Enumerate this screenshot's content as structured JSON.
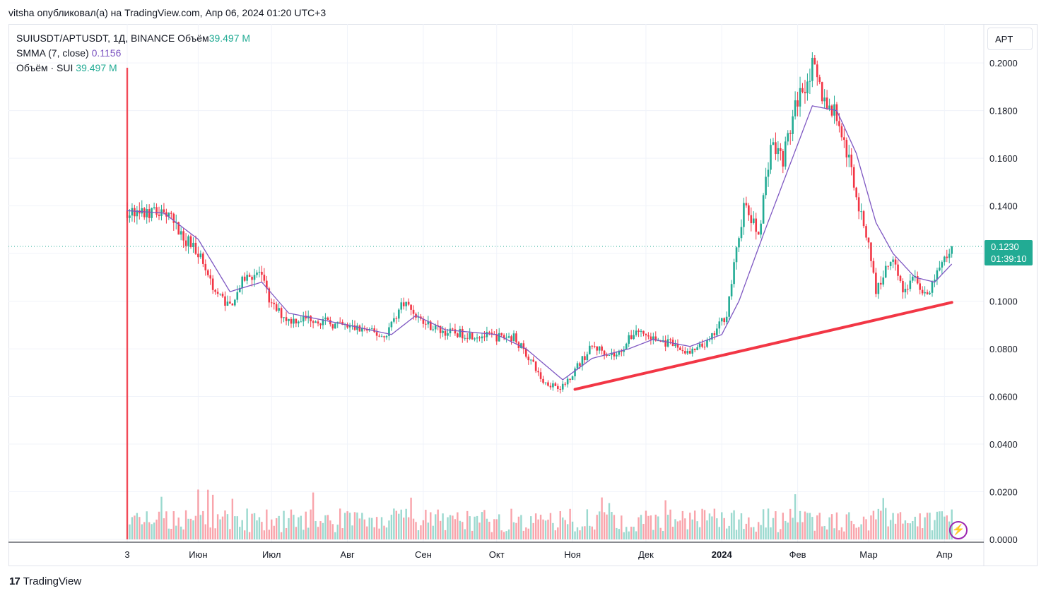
{
  "header": {
    "published_line": "vitsha опубликовал(а) на TradingView.com, Апр 06, 2024 01:20 UTC+3"
  },
  "legend": {
    "symbol_line": "SUIUSDT/APTUSDT, 1Д, BINANCE",
    "volume_prefix": "Объём",
    "volume_value": "39.497 M",
    "smma_label": "SMMA (7, close)",
    "smma_value": "0.1156",
    "volume_sui_label": "Объём · SUI",
    "volume_sui_value": "39.497 M"
  },
  "toolbar": {
    "currency_button": "APT"
  },
  "last_price": {
    "price": "0.1230",
    "countdown": "01:39:10"
  },
  "footer": {
    "brand": "TradingView",
    "brand_logo": "17"
  },
  "colors": {
    "up": "#22ab94",
    "down": "#f23645",
    "smma": "#7e57c2",
    "trendline": "#f23645",
    "grid": "#f0f3fa"
  },
  "chart_data": {
    "type": "candlestick",
    "title": "SUIUSDT/APTUSDT, 1Д, BINANCE",
    "y_ticks": [
      "0.0000",
      "0.0200",
      "0.0400",
      "0.0600",
      "0.0800",
      "0.1000",
      "0.1200",
      "0.1400",
      "0.1600",
      "0.1800",
      "0.2000"
    ],
    "ylim": [
      0,
      0.2045
    ],
    "x_ticks": [
      {
        "label": "3",
        "day": 0
      },
      {
        "label": "Июн",
        "day": 29
      },
      {
        "label": "Июл",
        "day": 59
      },
      {
        "label": "Авг",
        "day": 90
      },
      {
        "label": "Сен",
        "day": 121
      },
      {
        "label": "Окт",
        "day": 151
      },
      {
        "label": "Ноя",
        "day": 182
      },
      {
        "label": "Дек",
        "day": 212
      },
      {
        "label": "2024",
        "day": 243
      },
      {
        "label": "Фев",
        "day": 274
      },
      {
        "label": "Мар",
        "day": 303
      },
      {
        "label": "Апр",
        "day": 334
      }
    ],
    "series_close_approx": [
      {
        "day": 0,
        "close": 0.138
      },
      {
        "day": 8,
        "close": 0.136
      },
      {
        "day": 15,
        "close": 0.138
      },
      {
        "day": 22,
        "close": 0.128
      },
      {
        "day": 29,
        "close": 0.121
      },
      {
        "day": 36,
        "close": 0.104
      },
      {
        "day": 42,
        "close": 0.098
      },
      {
        "day": 48,
        "close": 0.11
      },
      {
        "day": 54,
        "close": 0.112
      },
      {
        "day": 59,
        "close": 0.098
      },
      {
        "day": 66,
        "close": 0.092
      },
      {
        "day": 75,
        "close": 0.093
      },
      {
        "day": 85,
        "close": 0.09
      },
      {
        "day": 97,
        "close": 0.088
      },
      {
        "day": 105,
        "close": 0.085
      },
      {
        "day": 113,
        "close": 0.1
      },
      {
        "day": 121,
        "close": 0.091
      },
      {
        "day": 130,
        "close": 0.087
      },
      {
        "day": 140,
        "close": 0.086
      },
      {
        "day": 151,
        "close": 0.085
      },
      {
        "day": 158,
        "close": 0.085
      },
      {
        "day": 165,
        "close": 0.075
      },
      {
        "day": 170,
        "close": 0.066
      },
      {
        "day": 178,
        "close": 0.064
      },
      {
        "day": 182,
        "close": 0.07
      },
      {
        "day": 190,
        "close": 0.081
      },
      {
        "day": 200,
        "close": 0.077
      },
      {
        "day": 208,
        "close": 0.088
      },
      {
        "day": 215,
        "close": 0.084
      },
      {
        "day": 222,
        "close": 0.082
      },
      {
        "day": 230,
        "close": 0.078
      },
      {
        "day": 238,
        "close": 0.083
      },
      {
        "day": 245,
        "close": 0.095
      },
      {
        "day": 252,
        "close": 0.14
      },
      {
        "day": 258,
        "close": 0.128
      },
      {
        "day": 263,
        "close": 0.166
      },
      {
        "day": 268,
        "close": 0.16
      },
      {
        "day": 274,
        "close": 0.185
      },
      {
        "day": 280,
        "close": 0.198
      },
      {
        "day": 285,
        "close": 0.184
      },
      {
        "day": 290,
        "close": 0.178
      },
      {
        "day": 296,
        "close": 0.155
      },
      {
        "day": 300,
        "close": 0.135
      },
      {
        "day": 303,
        "close": 0.125
      },
      {
        "day": 306,
        "close": 0.104
      },
      {
        "day": 313,
        "close": 0.12
      },
      {
        "day": 317,
        "close": 0.104
      },
      {
        "day": 322,
        "close": 0.11
      },
      {
        "day": 327,
        "close": 0.101
      },
      {
        "day": 331,
        "close": 0.112
      },
      {
        "day": 334,
        "close": 0.117
      },
      {
        "day": 337,
        "close": 0.123
      }
    ],
    "smma_approx": [
      {
        "day": 0,
        "value": 0.138
      },
      {
        "day": 15,
        "value": 0.137
      },
      {
        "day": 29,
        "value": 0.126
      },
      {
        "day": 42,
        "value": 0.104
      },
      {
        "day": 55,
        "value": 0.108
      },
      {
        "day": 66,
        "value": 0.095
      },
      {
        "day": 90,
        "value": 0.09
      },
      {
        "day": 108,
        "value": 0.086
      },
      {
        "day": 118,
        "value": 0.094
      },
      {
        "day": 130,
        "value": 0.088
      },
      {
        "day": 151,
        "value": 0.086
      },
      {
        "day": 163,
        "value": 0.08
      },
      {
        "day": 178,
        "value": 0.067
      },
      {
        "day": 190,
        "value": 0.076
      },
      {
        "day": 205,
        "value": 0.08
      },
      {
        "day": 215,
        "value": 0.084
      },
      {
        "day": 230,
        "value": 0.081
      },
      {
        "day": 243,
        "value": 0.086
      },
      {
        "day": 250,
        "value": 0.1
      },
      {
        "day": 260,
        "value": 0.128
      },
      {
        "day": 270,
        "value": 0.155
      },
      {
        "day": 280,
        "value": 0.182
      },
      {
        "day": 290,
        "value": 0.18
      },
      {
        "day": 298,
        "value": 0.162
      },
      {
        "day": 306,
        "value": 0.133
      },
      {
        "day": 313,
        "value": 0.12
      },
      {
        "day": 322,
        "value": 0.11
      },
      {
        "day": 330,
        "value": 0.108
      },
      {
        "day": 337,
        "value": 0.1156
      }
    ],
    "trendline": {
      "start": {
        "day": 183,
        "value": 0.063
      },
      "end": {
        "day": 337,
        "value": 0.0995
      }
    },
    "last_price_line": 0.123,
    "first_candle_volume_spike": 0.198,
    "grid": true,
    "legend_position": "top-left"
  }
}
